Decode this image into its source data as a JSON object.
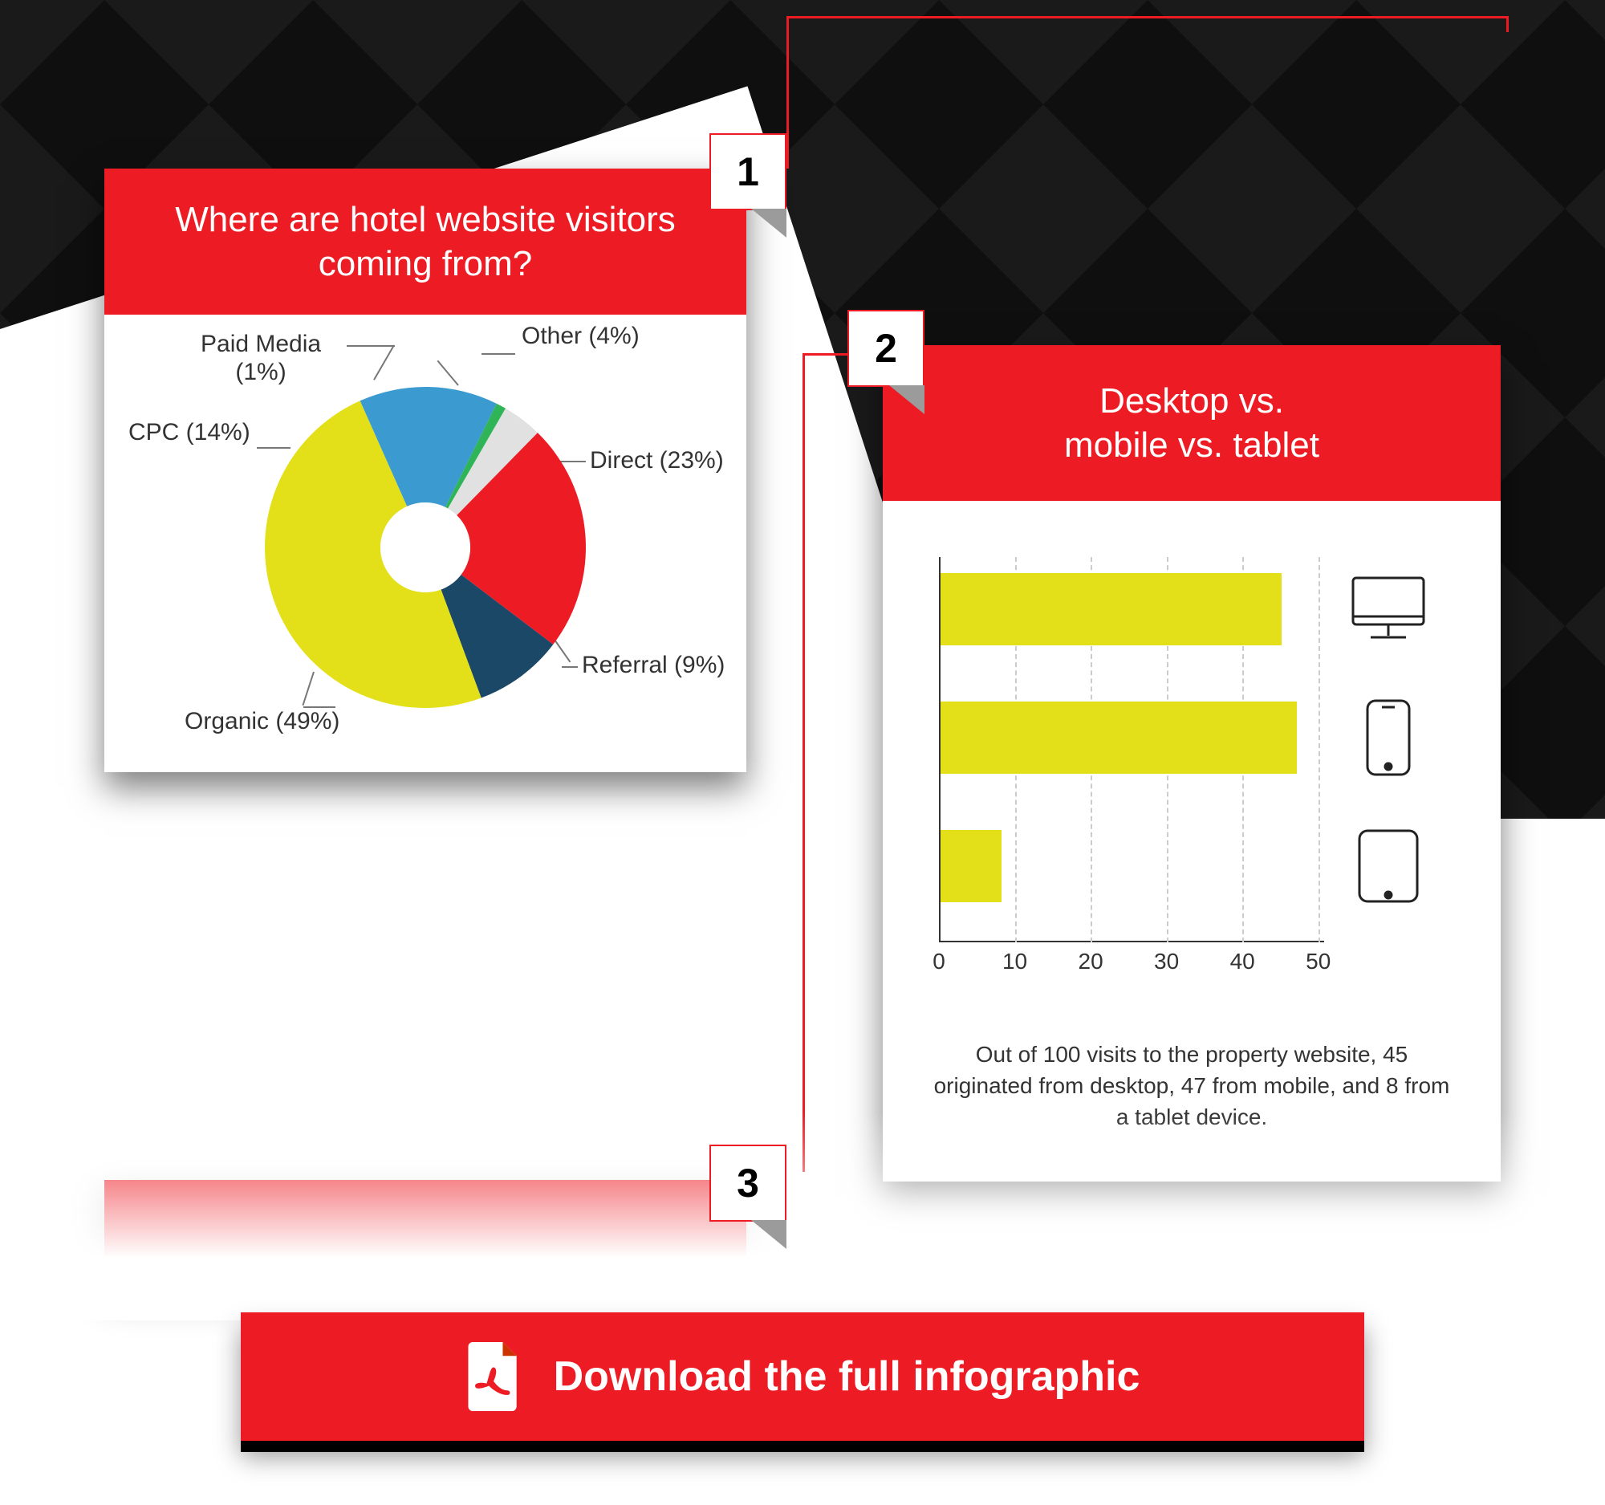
{
  "colors": {
    "accent": "#ed1c24",
    "bg_dark": "#141414",
    "white": "#ffffff",
    "text": "#333333",
    "bar": "#e3e01a",
    "grid": "#cccccc"
  },
  "card1": {
    "number": "1",
    "title": "Where are hotel website visitors coming from?",
    "chart": {
      "type": "donut",
      "inner_radius_pct": 28,
      "start_angle_deg": -60,
      "slices": [
        {
          "label": "Other (4%)",
          "value": 4,
          "color": "#e1e1e1"
        },
        {
          "label": "Direct (23%)",
          "value": 23,
          "color": "#ed1c24"
        },
        {
          "label": "Referral (9%)",
          "value": 9,
          "color": "#1a4866"
        },
        {
          "label": "Organic (49%)",
          "value": 49,
          "color": "#e3e01a"
        },
        {
          "label": "CPC (14%)",
          "value": 14,
          "color": "#3b9bd1"
        },
        {
          "label": "Paid Media (1%)",
          "value": 1,
          "color": "#2fb457"
        }
      ]
    }
  },
  "card2": {
    "number": "2",
    "title": "Desktop vs. mobile vs. tablet",
    "chart": {
      "type": "bar-horizontal",
      "bar_color": "#e3e01a",
      "xmax": 55,
      "ticks": [
        0,
        10,
        20,
        30,
        40,
        50
      ],
      "bars": [
        {
          "device": "desktop",
          "value": 45
        },
        {
          "device": "mobile",
          "value": 47
        },
        {
          "device": "tablet",
          "value": 8
        }
      ]
    },
    "caption": "Out of 100 visits to the property website, 45 originated from desktop, 47 from mobile, and 8 from a tablet device."
  },
  "card3": {
    "number": "3",
    "title": ""
  },
  "download_button": {
    "label": "Download the full infographic"
  }
}
